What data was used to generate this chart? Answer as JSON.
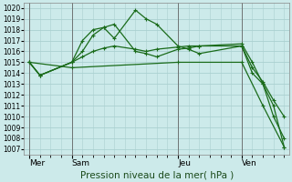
{
  "title": "Pression niveau de la mer( hPa )",
  "ylim": [
    1006.5,
    1020.5
  ],
  "background_color": "#cceaea",
  "grid_color": "#aad0d0",
  "line_color": "#1a6b1a",
  "x_tick_labels": [
    "Mer",
    "Sam",
    "Jeu",
    "Ven"
  ],
  "x_tick_positions": [
    0,
    4,
    14,
    20
  ],
  "xlim": [
    -0.5,
    24.5
  ],
  "yticks": [
    1007,
    1008,
    1009,
    1010,
    1011,
    1012,
    1013,
    1014,
    1015,
    1016,
    1017,
    1018,
    1019,
    1020
  ],
  "series": [
    {
      "x": [
        0,
        1,
        4,
        5,
        6,
        7,
        8,
        10,
        11,
        12,
        14,
        15,
        16,
        20,
        21,
        22,
        23,
        24
      ],
      "y": [
        1015.0,
        1013.8,
        1015.0,
        1017.0,
        1018.0,
        1018.2,
        1017.2,
        1019.8,
        1019.0,
        1018.5,
        1016.5,
        1016.2,
        1015.8,
        1016.5,
        1014.0,
        1013.0,
        1011.0,
        1007.2
      ]
    },
    {
      "x": [
        0,
        1,
        4,
        5,
        6,
        7,
        8,
        10,
        11,
        12,
        14,
        15,
        16,
        20,
        21,
        22,
        23,
        24
      ],
      "y": [
        1015.0,
        1013.8,
        1015.0,
        1016.0,
        1017.5,
        1018.2,
        1018.5,
        1016.0,
        1015.8,
        1015.5,
        1016.2,
        1016.3,
        1016.5,
        1016.7,
        1015.0,
        1013.0,
        1010.0,
        1008.0
      ]
    },
    {
      "x": [
        0,
        1,
        4,
        5,
        6,
        7,
        8,
        10,
        11,
        12,
        14,
        15,
        16,
        20,
        21,
        22,
        23,
        24
      ],
      "y": [
        1015.0,
        1013.8,
        1015.0,
        1015.5,
        1016.0,
        1016.3,
        1016.5,
        1016.2,
        1016.0,
        1016.2,
        1016.4,
        1016.5,
        1016.5,
        1016.5,
        1014.5,
        1013.2,
        1011.5,
        1010.0
      ]
    },
    {
      "x": [
        0,
        4,
        14,
        20,
        22,
        24
      ],
      "y": [
        1015.0,
        1014.5,
        1015.0,
        1015.0,
        1011.0,
        1007.2
      ]
    }
  ]
}
